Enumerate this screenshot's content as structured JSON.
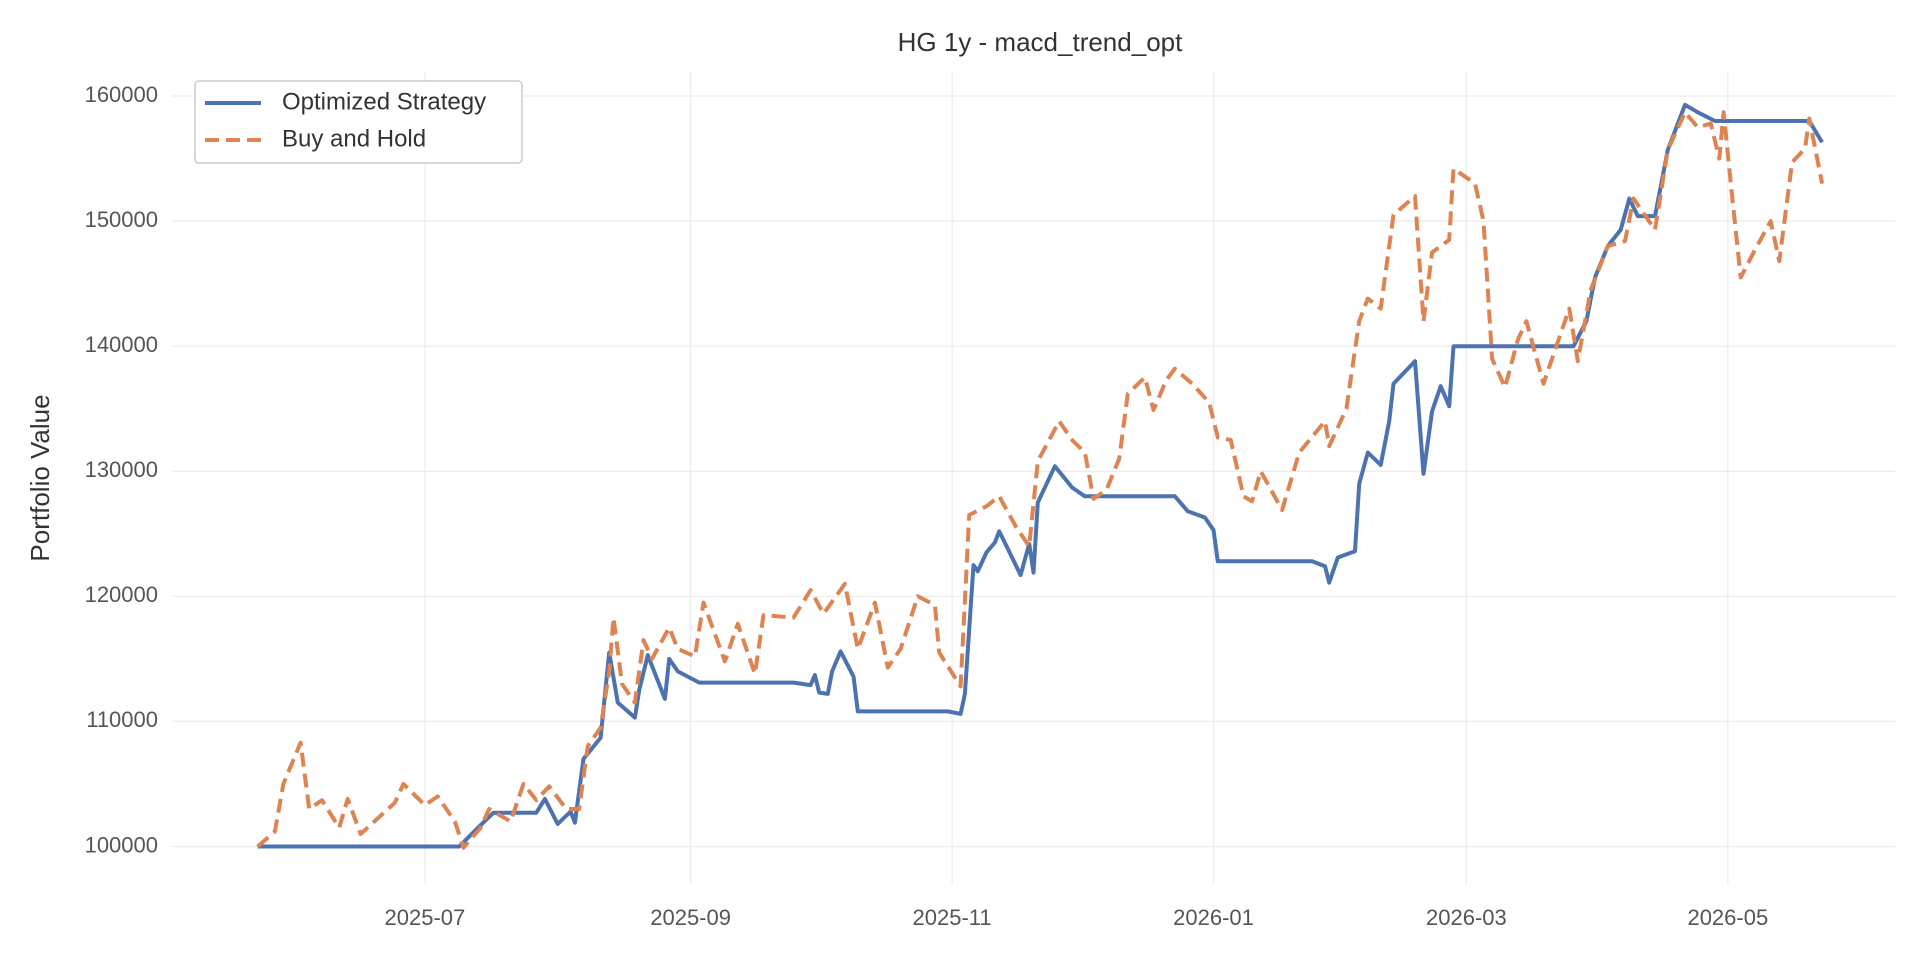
{
  "chart_data": {
    "type": "line",
    "title": "HG 1y - macd_trend_opt",
    "ylabel": "Portfolio Value",
    "xlim": [
      -20,
      382
    ],
    "ylim": [
      97000,
      162000
    ],
    "xticks": [
      {
        "value": 39,
        "label": "2025-07"
      },
      {
        "value": 101,
        "label": "2025-09"
      },
      {
        "value": 162,
        "label": "2025-11"
      },
      {
        "value": 223,
        "label": "2026-01"
      },
      {
        "value": 282,
        "label": "2026-03"
      },
      {
        "value": 343,
        "label": "2026-05"
      }
    ],
    "yticks": [
      100000,
      110000,
      120000,
      130000,
      140000,
      150000,
      160000
    ],
    "grid": true,
    "legend": "upper left",
    "series": [
      {
        "name": "Optimized Strategy",
        "color": "#4c72b0",
        "dash": false,
        "x": [
          0,
          47,
          52,
          55,
          65,
          67,
          70,
          73,
          74,
          76,
          80,
          82,
          84,
          88,
          89,
          91,
          95,
          96,
          98,
          103,
          125,
          129,
          130,
          131,
          133,
          134,
          136,
          139,
          140,
          161,
          164,
          165,
          167,
          168,
          170,
          172,
          173,
          175,
          178,
          180,
          181,
          182,
          186,
          190,
          193,
          214,
          217,
          221,
          223,
          224,
          246,
          249,
          250,
          252,
          256,
          257,
          259,
          262,
          264,
          265,
          270,
          272,
          274,
          276,
          278,
          279,
          307,
          310,
          312,
          315,
          318,
          320,
          322,
          326,
          329,
          333,
          336,
          340,
          362,
          365
        ],
        "values": [
          100000,
          100000,
          101700,
          102700,
          102700,
          103800,
          101800,
          102800,
          101900,
          107000,
          108700,
          115500,
          111500,
          110300,
          112500,
          115300,
          111800,
          115000,
          114000,
          113100,
          113100,
          112900,
          113700,
          112300,
          112200,
          114000,
          115600,
          113600,
          110800,
          110800,
          110600,
          112200,
          122500,
          122000,
          123500,
          124300,
          125200,
          123800,
          121700,
          124200,
          121900,
          127500,
          130400,
          128700,
          128000,
          128000,
          126800,
          126300,
          125300,
          122800,
          122800,
          122400,
          121100,
          123100,
          123600,
          129000,
          131500,
          130500,
          134000,
          137000,
          138800,
          129800,
          134800,
          136800,
          135200,
          140000,
          140000,
          142000,
          145500,
          148000,
          149300,
          151800,
          150400,
          150400,
          155700,
          159300,
          158700,
          158000,
          158000,
          156300
        ]
      },
      {
        "name": "Buy and Hold",
        "color": "#dd8452",
        "dash": true,
        "x": [
          0,
          4,
          6,
          10,
          12,
          15,
          19,
          21,
          24,
          32,
          34,
          39,
          42,
          46,
          48,
          52,
          54,
          59,
          62,
          65,
          68,
          72,
          75,
          77,
          80,
          82,
          83,
          85,
          88,
          90,
          92,
          96,
          98,
          102,
          104,
          109,
          112,
          116,
          118,
          125,
          129,
          132,
          137,
          140,
          144,
          147,
          150,
          154,
          158,
          159,
          164,
          166,
          170,
          173,
          177,
          180,
          182,
          187,
          190,
          193,
          195,
          198,
          201,
          203,
          207,
          209,
          212,
          214,
          218,
          222,
          224,
          227,
          230,
          232,
          234,
          239,
          243,
          249,
          250,
          254,
          257,
          259,
          262,
          265,
          270,
          272,
          274,
          278,
          279,
          284,
          286,
          288,
          291,
          294,
          296,
          300,
          306,
          308,
          311,
          315,
          319,
          321,
          326,
          329,
          333,
          336,
          339,
          341,
          342,
          344,
          346,
          349,
          353,
          355,
          358,
          361,
          362,
          365
        ],
        "values": [
          100000,
          101200,
          105000,
          108300,
          103000,
          103700,
          101500,
          103800,
          101000,
          103500,
          105000,
          103300,
          104000,
          102000,
          99900,
          101500,
          103000,
          102000,
          105000,
          103700,
          104800,
          103000,
          103000,
          108000,
          109500,
          114000,
          118300,
          113000,
          111500,
          116500,
          115000,
          117500,
          115800,
          115200,
          119500,
          114800,
          117800,
          113800,
          118500,
          118300,
          120500,
          118600,
          121000,
          115800,
          119500,
          114300,
          115800,
          120000,
          119300,
          115500,
          112800,
          126500,
          127200,
          128000,
          125500,
          124000,
          130800,
          134000,
          132500,
          131500,
          127800,
          128500,
          131000,
          136200,
          137500,
          134900,
          137300,
          138200,
          137000,
          135500,
          132700,
          132500,
          128000,
          127600,
          130000,
          126900,
          131500,
          134000,
          132000,
          135000,
          142000,
          143800,
          143000,
          150500,
          152000,
          142000,
          147500,
          148500,
          154200,
          153000,
          150000,
          139000,
          136700,
          140500,
          142000,
          137000,
          143000,
          138800,
          144500,
          148000,
          148400,
          151800,
          149300,
          155700,
          158700,
          157500,
          157800,
          155000,
          158700,
          152000,
          145500,
          147500,
          150000,
          146800,
          154700,
          155800,
          158200,
          153000
        ]
      }
    ]
  }
}
